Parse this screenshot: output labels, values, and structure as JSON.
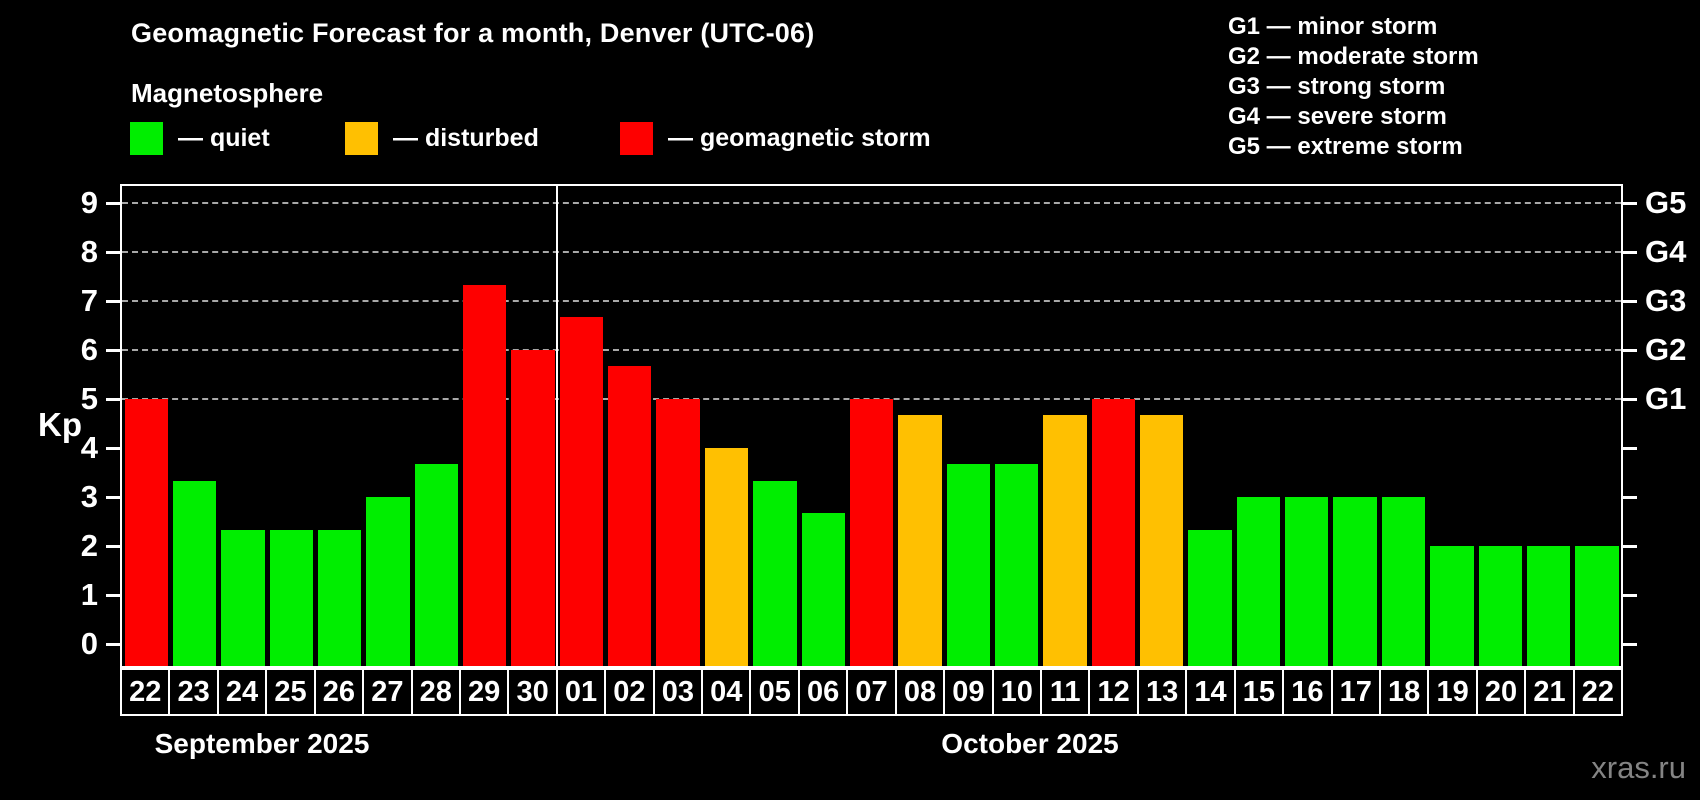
{
  "title": "Geomagnetic Forecast for a month, Denver (UTC-06)",
  "subtitle": "Magnetosphere",
  "legend": {
    "quiet": {
      "label": "— quiet",
      "color": "#00ee00"
    },
    "disturbed": {
      "label": "— disturbed",
      "color": "#ffc001"
    },
    "storm": {
      "label": "— geomagnetic storm",
      "color": "#fe0000"
    }
  },
  "g_scale_legend": [
    "G1 — minor storm",
    "G2 — moderate storm",
    "G3 — strong storm",
    "G4 — severe storm",
    "G5 — extreme storm"
  ],
  "watermark": "xras.ru",
  "chart_data": {
    "type": "bar",
    "ylabel": "Kp",
    "ylim": [
      -0.5,
      9.4
    ],
    "y_ticks": [
      0,
      1,
      2,
      3,
      4,
      5,
      6,
      7,
      8,
      9
    ],
    "gridlines_at": [
      5,
      6,
      7,
      8,
      9
    ],
    "grid": "dashed-horizontal",
    "right_axis_labels": [
      {
        "value": 5,
        "label": "G1"
      },
      {
        "value": 6,
        "label": "G2"
      },
      {
        "value": 7,
        "label": "G3"
      },
      {
        "value": 8,
        "label": "G4"
      },
      {
        "value": 9,
        "label": "G5"
      }
    ],
    "months": [
      {
        "label": "September 2025",
        "days": 9
      },
      {
        "label": "October 2025",
        "days": 22
      }
    ],
    "categories": [
      "22",
      "23",
      "24",
      "25",
      "26",
      "27",
      "28",
      "29",
      "30",
      "01",
      "02",
      "03",
      "04",
      "05",
      "06",
      "07",
      "08",
      "09",
      "10",
      "11",
      "12",
      "13",
      "14",
      "15",
      "16",
      "17",
      "18",
      "19",
      "20",
      "21",
      "22"
    ],
    "values": [
      5.0,
      3.33,
      2.33,
      2.33,
      2.33,
      3.0,
      3.67,
      7.33,
      6.0,
      6.67,
      5.67,
      5.0,
      4.0,
      3.33,
      2.67,
      5.0,
      4.67,
      3.67,
      3.67,
      4.67,
      5.0,
      4.67,
      2.33,
      3.0,
      3.0,
      3.0,
      3.0,
      2.0,
      2.0,
      2.0,
      2.0
    ],
    "statuses": [
      "storm",
      "quiet",
      "quiet",
      "quiet",
      "quiet",
      "quiet",
      "quiet",
      "storm",
      "storm",
      "storm",
      "storm",
      "storm",
      "disturbed",
      "quiet",
      "quiet",
      "storm",
      "disturbed",
      "quiet",
      "quiet",
      "disturbed",
      "storm",
      "disturbed",
      "quiet",
      "quiet",
      "quiet",
      "quiet",
      "quiet",
      "quiet",
      "quiet",
      "quiet",
      "quiet"
    ],
    "colors": {
      "quiet": "#00ee00",
      "disturbed": "#ffc001",
      "storm": "#fe0000"
    }
  }
}
